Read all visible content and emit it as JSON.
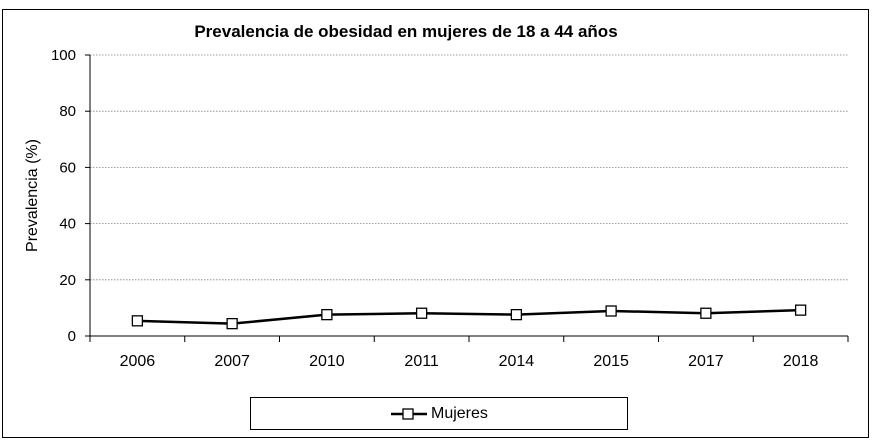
{
  "chart_data": {
    "type": "line",
    "title": "Prevalencia de obesidad en mujeres de 18 a 44 años",
    "xlabel": "",
    "ylabel": "Prevalencia (%)",
    "categories": [
      "2006",
      "2007",
      "2010",
      "2011",
      "2014",
      "2015",
      "2017",
      "2018"
    ],
    "ylim": [
      0,
      100
    ],
    "yticks": [
      "0",
      "20",
      "40",
      "60",
      "80",
      "100"
    ],
    "grid": true,
    "legend_position": "bottom",
    "series": [
      {
        "name": "Mujeres",
        "values": [
          5.4,
          4.4,
          7.6,
          8.1,
          7.6,
          8.9,
          8.1,
          9.2
        ],
        "color": "#000000",
        "marker": "square-open"
      }
    ]
  }
}
